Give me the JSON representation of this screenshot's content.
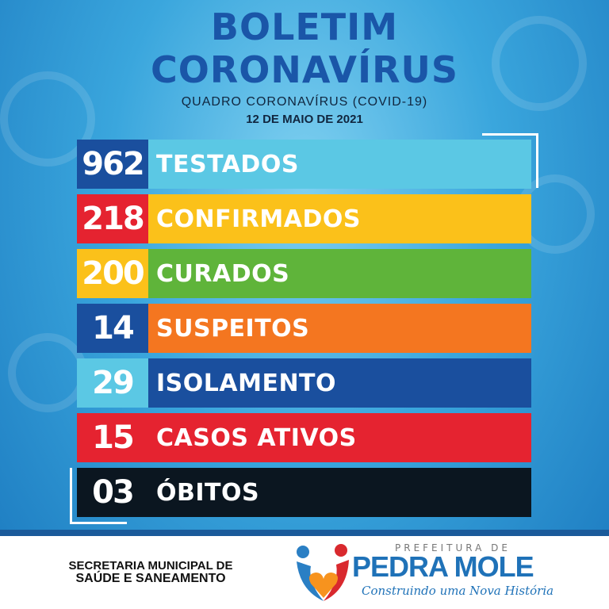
{
  "header": {
    "title_line1": "BOLETIM",
    "title_line2": "CORONAVÍRUS",
    "subtitle": "QUADRO CORONAVÍRUS (COVID-19)",
    "date": "12 DE MAIO DE 2021"
  },
  "rows": [
    {
      "value": "962",
      "label": "TESTADOS",
      "num_color": "#1a4f9e",
      "bar_color": "#5bc8e4"
    },
    {
      "value": "218",
      "label": "CONFIRMADOS",
      "num_color": "#e52330",
      "bar_color": "#fbc11a"
    },
    {
      "value": "200",
      "label": "CURADOS",
      "num_color": "#fbc11a",
      "bar_color": "#5fb43a"
    },
    {
      "value": "14",
      "label": "SUSPEITOS",
      "num_color": "#1a4f9e",
      "bar_color": "#f47620"
    },
    {
      "value": "29",
      "label": "ISOLAMENTO",
      "num_color": "#5bc8e4",
      "bar_color": "#1a4f9e"
    },
    {
      "value": "15",
      "label": "CASOS ATIVOS",
      "num_color": "#e52330",
      "bar_color": "#e52330"
    },
    {
      "value": "03",
      "label": "ÓBITOS",
      "num_color": "#0b1620",
      "bar_color": "#0b1620"
    }
  ],
  "footer": {
    "secretaria_line1": "SECRETARIA MUNICIPAL DE",
    "secretaria_line2": "SAÚDE E SANEAMENTO",
    "logo": {
      "top": "PREFEITURA DE",
      "name": "PEDRA MOLE",
      "slogan": "Construindo uma Nova História"
    }
  }
}
